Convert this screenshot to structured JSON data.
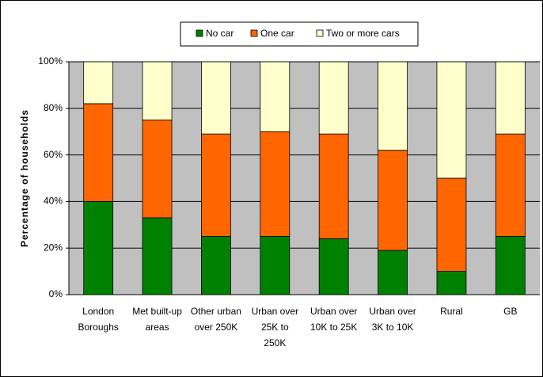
{
  "chart_data": {
    "type": "stacked_bar",
    "y_label": "Percentage of households",
    "categories": [
      [
        "London",
        "Boroughs"
      ],
      [
        "Met built-up",
        "areas"
      ],
      [
        "Other urban",
        "over 250K"
      ],
      [
        "Urban over",
        "25K to",
        "250K"
      ],
      [
        "Urban over",
        "10K to 25K"
      ],
      [
        "Urban over",
        "3K to 10K"
      ],
      [
        "Rural"
      ],
      [
        "GB"
      ]
    ],
    "series": [
      {
        "name": "No car",
        "color": "#008000",
        "values": [
          40,
          33,
          25,
          25,
          24,
          19,
          10,
          25
        ]
      },
      {
        "name": "One car",
        "color": "#ff6600",
        "values": [
          42,
          42,
          44,
          45,
          45,
          43,
          40,
          44
        ]
      },
      {
        "name": "Two or more cars",
        "color": "#ffffcc",
        "values": [
          18,
          25,
          31,
          30,
          31,
          38,
          50,
          31
        ]
      }
    ],
    "ylim": [
      0,
      100
    ],
    "yticks": [
      {
        "value": 0,
        "label": "0%"
      },
      {
        "value": 20,
        "label": "20%"
      },
      {
        "value": 40,
        "label": "40%"
      },
      {
        "value": 60,
        "label": "60%"
      },
      {
        "value": 80,
        "label": "80%"
      },
      {
        "value": 100,
        "label": "100%"
      }
    ],
    "grid": true,
    "legend": "top"
  }
}
